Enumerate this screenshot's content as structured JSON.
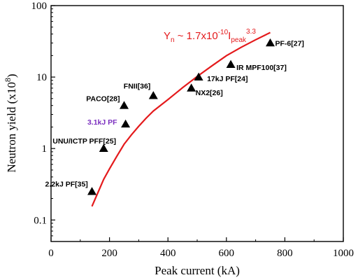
{
  "chart_data": {
    "type": "scatter",
    "title": "",
    "xlabel": "Peak current (kA)",
    "ylabel": "Neutron yield (x10^8)",
    "xlim": [
      0,
      1000
    ],
    "ylim": [
      0.05,
      100
    ],
    "yscale": "log",
    "grid": false,
    "xticks": [
      "0",
      "200",
      "400",
      "600",
      "800",
      "1000"
    ],
    "yticks": [
      "0.1",
      "1",
      "10",
      "100"
    ],
    "points": [
      {
        "label": "2.2kJ PF[35]",
        "x": 140,
        "y": 0.25,
        "color": "#000000"
      },
      {
        "label": "UNU/ICTP PFF[25]",
        "x": 180,
        "y": 1.0,
        "color": "#000000"
      },
      {
        "label": "3.1kJ PF",
        "x": 255,
        "y": 2.2,
        "color": "#7b2fbf"
      },
      {
        "label": "PACO[28]",
        "x": 250,
        "y": 4.0,
        "color": "#000000"
      },
      {
        "label": "FNII[36]",
        "x": 350,
        "y": 5.5,
        "color": "#000000"
      },
      {
        "label": "NX2[26]",
        "x": 480,
        "y": 7.0,
        "color": "#000000"
      },
      {
        "label": "17kJ PF[24]",
        "x": 505,
        "y": 10.0,
        "color": "#000000"
      },
      {
        "label": "IR MPF100[37]",
        "x": 615,
        "y": 15.0,
        "color": "#000000"
      },
      {
        "label": "PF-6[27]",
        "x": 750,
        "y": 30.0,
        "color": "#000000"
      }
    ],
    "fit": {
      "equation": "Y_n ~ 1.7x10^-10 I_peak^3.3",
      "color": "#e41a1c",
      "x": [
        140,
        160,
        180,
        200,
        225,
        250,
        275,
        300,
        325,
        350,
        400,
        450,
        500,
        550,
        600,
        650,
        700,
        750
      ],
      "y": [
        0.155,
        0.24,
        0.37,
        0.52,
        0.78,
        1.15,
        1.55,
        2.05,
        2.65,
        3.35,
        4.85,
        7.1,
        10.2,
        14.3,
        19.9,
        26.0,
        33.3,
        42.0
      ]
    }
  },
  "labels": {
    "ylabel_main": "Neutron yield (x10",
    "ylabel_sup": "8",
    "ylabel_end": ")",
    "eq_y": "Y",
    "eq_ysub": "n",
    "eq_mid": " ~ 1.7x10",
    "eq_exp1": "-10",
    "eq_i": "I",
    "eq_isub": "peak",
    "eq_exp2": "3.3"
  }
}
